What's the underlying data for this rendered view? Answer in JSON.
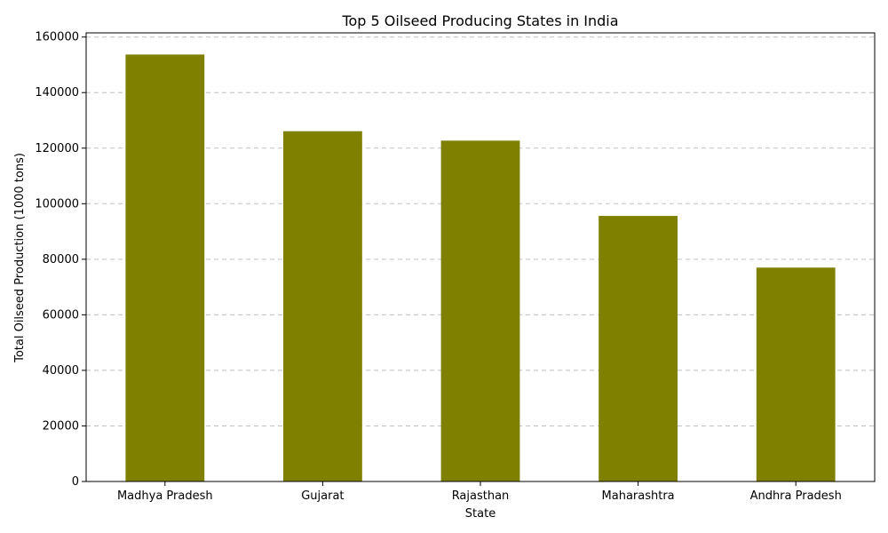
{
  "chart_data": {
    "type": "bar",
    "title": "Top 5 Oilseed Producing States in India",
    "xlabel": "State",
    "ylabel": "Total Oilseed Production (1000 tons)",
    "categories": [
      "Madhya Pradesh",
      "Gujarat",
      "Rajasthan",
      "Maharashtra",
      "Andhra Pradesh"
    ],
    "values": [
      153700,
      126100,
      122700,
      95600,
      77000
    ],
    "ylim": [
      0,
      161500
    ],
    "yticks": [
      0,
      20000,
      40000,
      60000,
      80000,
      100000,
      120000,
      140000,
      160000
    ],
    "bar_color": "#808000",
    "grid": "y-dashed",
    "legend": "none"
  }
}
